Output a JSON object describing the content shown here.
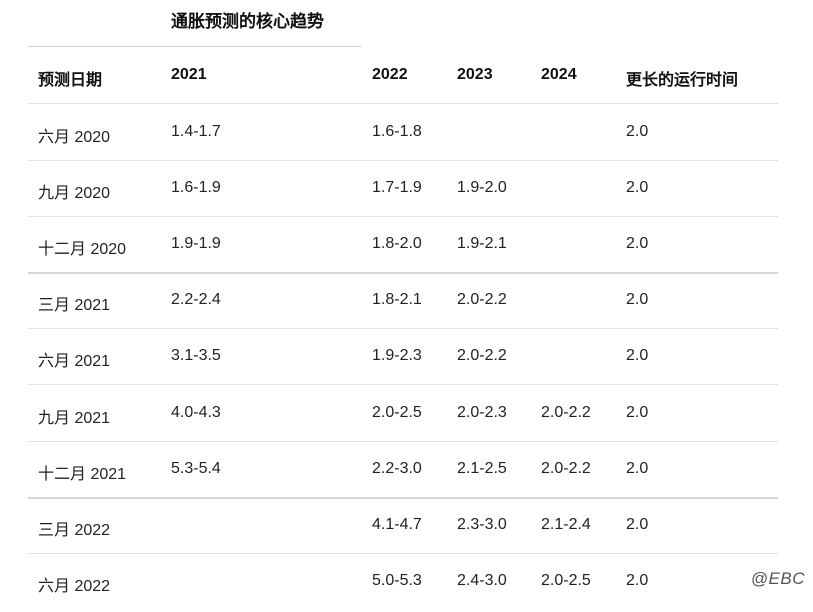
{
  "title": "通胀预测的核心趋势",
  "headers": [
    "预测日期",
    "2021",
    "2022",
    "2023",
    "2024",
    "更长的运行时间"
  ],
  "rows": [
    [
      "六月 2020",
      "1.4-1.7",
      "1.6-1.8",
      "",
      "",
      "2.0"
    ],
    [
      "九月 2020",
      "1.6-1.9",
      "1.7-1.9",
      "1.9-2.0",
      "",
      "2.0"
    ],
    [
      "十二月 2020",
      "1.9-1.9",
      "1.8-2.0",
      "1.9-2.1",
      "",
      "2.0"
    ],
    [
      "三月 2021",
      "2.2-2.4",
      "1.8-2.1",
      "2.0-2.2",
      "",
      "2.0"
    ],
    [
      "六月 2021",
      "3.1-3.5",
      "1.9-2.3",
      "2.0-2.2",
      "",
      "2.0"
    ],
    [
      "九月 2021",
      "4.0-4.3",
      "2.0-2.5",
      "2.0-2.3",
      "2.0-2.2",
      "2.0"
    ],
    [
      "十二月 2021",
      "5.3-5.4",
      "2.2-3.0",
      "2.1-2.5",
      "2.0-2.2",
      "2.0"
    ],
    [
      "三月 2022",
      "",
      "4.1-4.7",
      "2.3-3.0",
      "2.1-2.4",
      "2.0"
    ],
    [
      "六月 2022",
      "",
      "5.0-5.3",
      "2.4-3.0",
      "2.0-2.5",
      "2.0"
    ]
  ],
  "watermark": "@EBC"
}
